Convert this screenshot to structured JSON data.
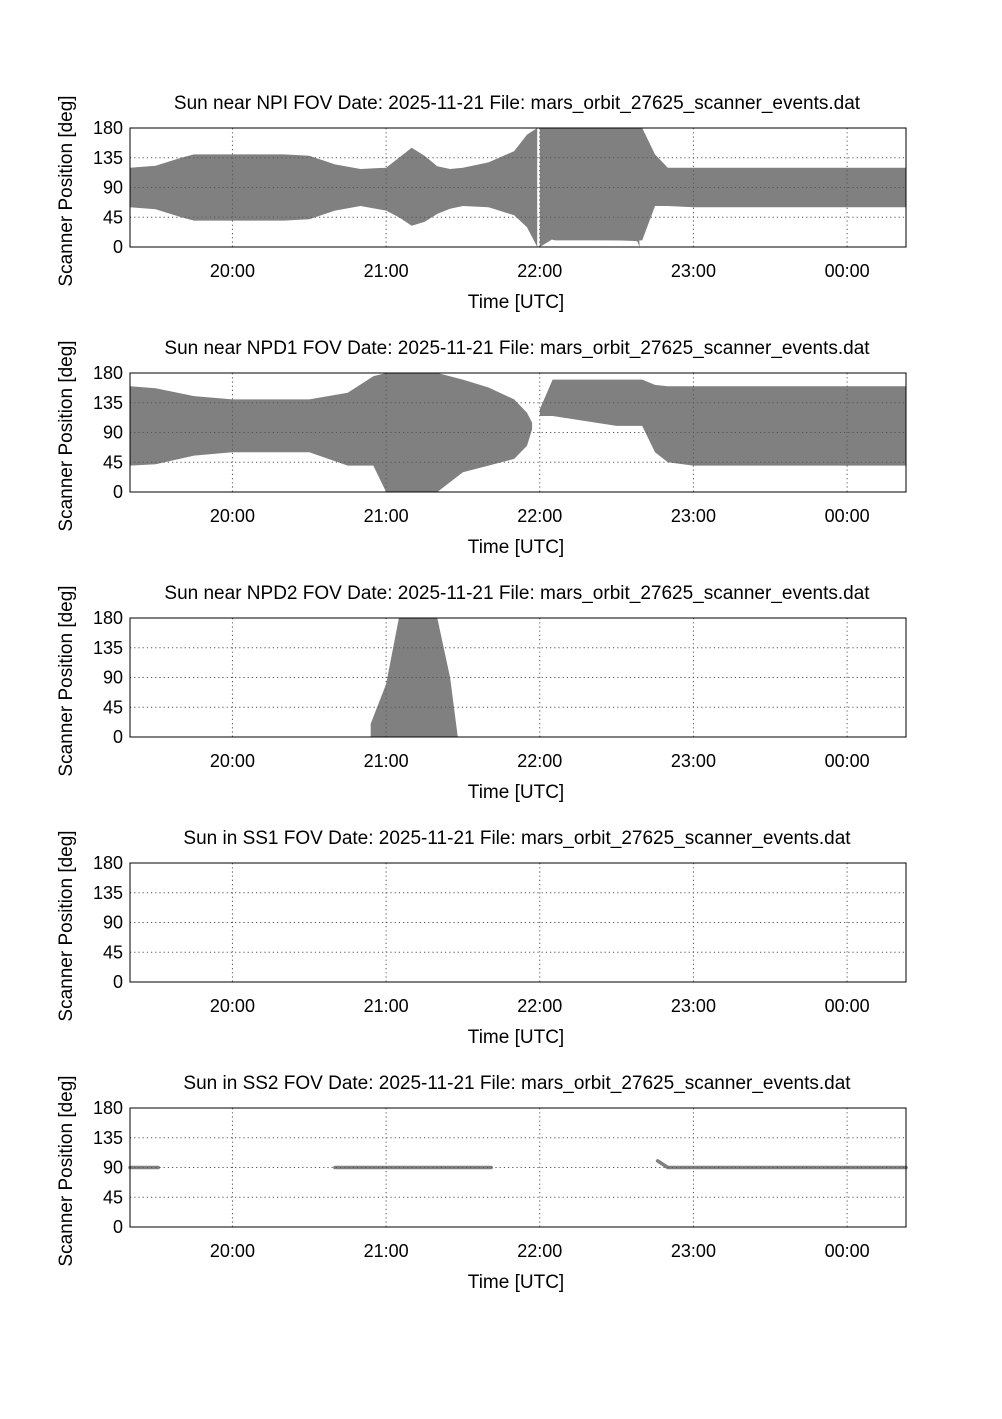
{
  "chart_data": [
    {
      "type": "area",
      "title": "Sun near NPI FOV   Date: 2025-11-21   File: mars_orbit_27625_scanner_events.dat",
      "xlabel": "Time [UTC]",
      "ylabel": "Scanner Position [deg]",
      "ylim": [
        0,
        180
      ],
      "yticks": [
        "0",
        "45",
        "90",
        "135",
        "180"
      ],
      "xlim": [
        "19:20",
        "00:23"
      ],
      "xticks": [
        "20:00",
        "21:00",
        "22:00",
        "23:00",
        "00:00"
      ],
      "grid": true,
      "color": "#808080",
      "series": [
        {
          "x": [
            "19:20",
            "19:30",
            "19:40",
            "19:45",
            "20:00",
            "20:20",
            "20:30",
            "20:40",
            "20:50",
            "21:00",
            "21:05",
            "21:10",
            "21:15",
            "21:20",
            "21:25",
            "21:30",
            "21:40",
            "21:50",
            "21:55",
            "21:59"
          ],
          "low": [
            60,
            57,
            45,
            40,
            40,
            40,
            42,
            55,
            62,
            55,
            45,
            32,
            38,
            50,
            58,
            62,
            60,
            48,
            30,
            0
          ],
          "high": [
            120,
            123,
            135,
            140,
            140,
            140,
            138,
            125,
            118,
            120,
            135,
            150,
            138,
            122,
            118,
            120,
            128,
            145,
            170,
            180
          ]
        },
        {
          "x": [
            "22:00",
            "22:05",
            "22:30",
            "22:40",
            "22:45",
            "22:50",
            "23:00",
            "00:00",
            "00:23"
          ],
          "low": [
            0,
            12,
            10,
            10,
            62,
            62,
            60,
            60,
            60
          ],
          "high": [
            180,
            180,
            180,
            180,
            140,
            120,
            120,
            120,
            120
          ]
        },
        {
          "x": [
            "22:00",
            "22:04",
            "22:06",
            "22:30",
            "22:38",
            "22:39"
          ],
          "low": [
            14,
            12,
            10,
            10,
            9,
            0
          ],
          "high": [
            27,
            62,
            63,
            63,
            62,
            0
          ]
        }
      ]
    },
    {
      "type": "area",
      "title": "Sun near NPD1 FOV   Date: 2025-11-21   File: mars_orbit_27625_scanner_events.dat",
      "xlabel": "Time [UTC]",
      "ylabel": "Scanner Position [deg]",
      "ylim": [
        0,
        180
      ],
      "yticks": [
        "0",
        "45",
        "90",
        "135",
        "180"
      ],
      "xlim": [
        "19:20",
        "00:23"
      ],
      "xticks": [
        "20:00",
        "21:00",
        "22:00",
        "23:00",
        "00:00"
      ],
      "grid": true,
      "color": "#808080",
      "series": [
        {
          "x": [
            "19:20",
            "19:30",
            "19:45",
            "20:00",
            "20:30",
            "20:45",
            "20:55",
            "21:00",
            "21:05",
            "21:20",
            "21:30",
            "21:40",
            "21:50",
            "21:55",
            "21:57"
          ],
          "low": [
            40,
            42,
            55,
            60,
            60,
            40,
            40,
            0,
            0,
            0,
            30,
            40,
            50,
            70,
            95
          ],
          "high": [
            160,
            157,
            145,
            140,
            140,
            150,
            175,
            180,
            180,
            180,
            170,
            158,
            140,
            120,
            105
          ]
        },
        {
          "x": [
            "22:00",
            "22:05",
            "22:30",
            "22:40",
            "22:45",
            "22:50",
            "23:00",
            "00:00",
            "00:23"
          ],
          "low": [
            115,
            115,
            100,
            100,
            60,
            45,
            40,
            40,
            40
          ],
          "high": [
            125,
            170,
            170,
            170,
            162,
            160,
            160,
            160,
            160
          ]
        }
      ]
    },
    {
      "type": "area",
      "title": "Sun near NPD2 FOV   Date: 2025-11-21   File: mars_orbit_27625_scanner_events.dat",
      "xlabel": "Time [UTC]",
      "ylabel": "Scanner Position [deg]",
      "ylim": [
        0,
        180
      ],
      "yticks": [
        "0",
        "45",
        "90",
        "135",
        "180"
      ],
      "xlim": [
        "19:20",
        "00:23"
      ],
      "xticks": [
        "20:00",
        "21:00",
        "22:00",
        "23:00",
        "00:00"
      ],
      "grid": true,
      "color": "#808080",
      "series": [
        {
          "x": [
            "20:54",
            "21:00",
            "21:05",
            "21:20",
            "21:25",
            "21:28"
          ],
          "low": [
            0,
            0,
            0,
            0,
            0,
            0
          ],
          "high": [
            20,
            80,
            180,
            180,
            90,
            0
          ]
        }
      ]
    },
    {
      "type": "area",
      "title": "Sun in SS1 FOV   Date: 2025-11-21   File: mars_orbit_27625_scanner_events.dat",
      "xlabel": "Time [UTC]",
      "ylabel": "Scanner Position [deg]",
      "ylim": [
        0,
        180
      ],
      "yticks": [
        "0",
        "45",
        "90",
        "135",
        "180"
      ],
      "xlim": [
        "19:20",
        "00:23"
      ],
      "xticks": [
        "20:00",
        "21:00",
        "22:00",
        "23:00",
        "00:00"
      ],
      "grid": true,
      "color": "#808080",
      "series": []
    },
    {
      "type": "line",
      "title": "Sun in SS2 FOV   Date: 2025-11-21   File: mars_orbit_27625_scanner_events.dat",
      "xlabel": "Time [UTC]",
      "ylabel": "Scanner Position [deg]",
      "ylim": [
        0,
        180
      ],
      "yticks": [
        "0",
        "45",
        "90",
        "135",
        "180"
      ],
      "xlim": [
        "19:20",
        "00:23"
      ],
      "xticks": [
        "20:00",
        "21:00",
        "22:00",
        "23:00",
        "00:00"
      ],
      "grid": true,
      "color": "#808080",
      "series": [
        {
          "x": [
            "19:20",
            "19:31"
          ],
          "y": [
            90,
            90
          ]
        },
        {
          "x": [
            "20:40",
            "21:41"
          ],
          "y": [
            90,
            90
          ]
        },
        {
          "x": [
            "22:46",
            "22:50",
            "22:55",
            "23:00",
            "00:00",
            "00:23"
          ],
          "y": [
            100,
            90,
            90,
            90,
            90,
            90
          ]
        }
      ]
    }
  ]
}
